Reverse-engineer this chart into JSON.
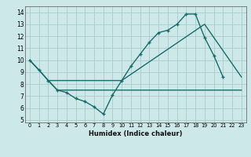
{
  "xlabel": "Humidex (Indice chaleur)",
  "ylabel": "",
  "bg_color": "#cce8e8",
  "grid_color": "#aacccc",
  "line_color": "#1a6b6b",
  "xlim": [
    -0.5,
    23.5
  ],
  "ylim": [
    4.8,
    14.5
  ],
  "yticks": [
    5,
    6,
    7,
    8,
    9,
    10,
    11,
    12,
    13,
    14
  ],
  "xticks": [
    0,
    1,
    2,
    3,
    4,
    5,
    6,
    7,
    8,
    9,
    10,
    11,
    12,
    13,
    14,
    15,
    16,
    17,
    18,
    19,
    20,
    21,
    22,
    23
  ],
  "line1_x": [
    0,
    1,
    2,
    3,
    4,
    5,
    6,
    7,
    8,
    9,
    10,
    11,
    12,
    13,
    14,
    15,
    16,
    17,
    18,
    19,
    20,
    21
  ],
  "line1_y": [
    10,
    9.2,
    8.3,
    7.5,
    7.3,
    6.8,
    6.55,
    6.1,
    5.5,
    7.1,
    8.3,
    9.5,
    10.5,
    11.5,
    12.3,
    12.5,
    13.0,
    13.85,
    13.85,
    11.9,
    10.4,
    8.6
  ],
  "line2_x": [
    0,
    3,
    22,
    23
  ],
  "line2_y": [
    10,
    7.5,
    7.5,
    7.5
  ],
  "line3_x": [
    2,
    10,
    19,
    23
  ],
  "line3_y": [
    8.3,
    8.3,
    13.0,
    8.6
  ]
}
